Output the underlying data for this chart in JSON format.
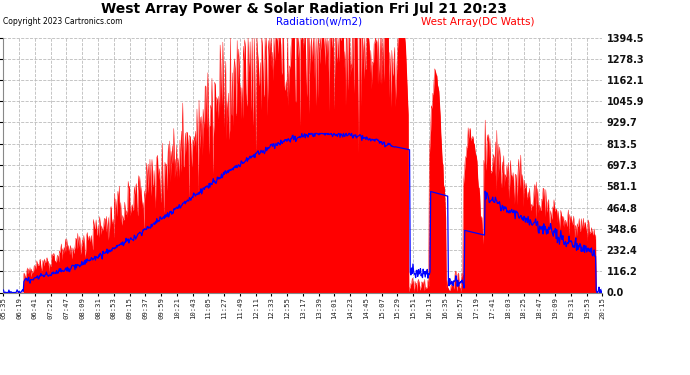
{
  "title": "West Array Power & Solar Radiation Fri Jul 21 20:23",
  "copyright": "Copyright 2023 Cartronics.com",
  "legend_radiation": "Radiation(w/m2)",
  "legend_west": "West Array(DC Watts)",
  "ylabel_values": [
    0.0,
    116.2,
    232.4,
    348.6,
    464.8,
    581.1,
    697.3,
    813.5,
    929.7,
    1045.9,
    1162.1,
    1278.3,
    1394.5
  ],
  "ymax": 1394.5,
  "ymin": 0.0,
  "bg_color": "#ffffff",
  "grid_color": "#bbbbbb",
  "radiation_color": "#ff0000",
  "west_color": "#0000ff",
  "title_color": "#000000",
  "copyright_color": "#000000",
  "legend_radiation_color": "#0000ff",
  "legend_west_color": "#ff0000",
  "x_tick_labels": [
    "05:35",
    "06:19",
    "06:41",
    "07:25",
    "07:47",
    "08:09",
    "08:31",
    "08:53",
    "09:15",
    "09:37",
    "09:59",
    "10:21",
    "10:43",
    "11:05",
    "11:27",
    "11:49",
    "12:11",
    "12:33",
    "12:55",
    "13:17",
    "13:39",
    "14:01",
    "14:23",
    "14:45",
    "15:07",
    "15:29",
    "15:51",
    "16:13",
    "16:35",
    "16:57",
    "17:19",
    "17:41",
    "18:03",
    "18:25",
    "18:47",
    "19:09",
    "19:31",
    "19:53",
    "20:15"
  ]
}
